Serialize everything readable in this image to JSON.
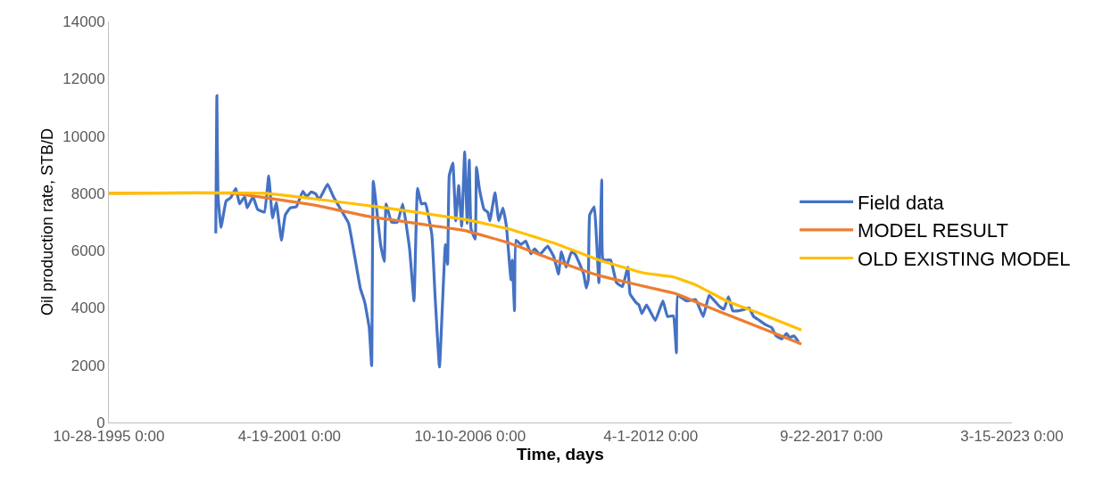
{
  "chart_data": {
    "type": "line",
    "xlabel": "Time, days",
    "ylabel": "Oil production rate, STB/D",
    "xlim": [
      "1995-10-28",
      "2023-03-15"
    ],
    "xticks": [
      {
        "value": "1995-10-28",
        "label": "10-28-1995 0:00"
      },
      {
        "value": "2001-04-19",
        "label": "4-19-2001 0:00"
      },
      {
        "value": "2006-10-10",
        "label": "10-10-2006 0:00"
      },
      {
        "value": "2012-04-01",
        "label": "4-1-2012 0:00"
      },
      {
        "value": "2017-09-22",
        "label": "9-22-2017 0:00"
      },
      {
        "value": "2023-03-15",
        "label": "3-15-2023 0:00"
      }
    ],
    "ylim": [
      0,
      14000
    ],
    "yticks": [
      0,
      2000,
      4000,
      6000,
      8000,
      10000,
      12000,
      14000
    ],
    "grid": false,
    "legend": "right",
    "marker": "none",
    "line_style": "solid",
    "series": [
      {
        "name": "Field data",
        "color": "#4472c4",
        "x": [
          "1999-01-24",
          "1999-02-05",
          "1999-02-17",
          "1999-03-23",
          "1999-05-18",
          "1999-07-07",
          "1999-09-03",
          "1999-10-14",
          "1999-12-10",
          "2000-01-07",
          "2000-03-11",
          "2000-05-01",
          "2000-07-15",
          "2000-09-01",
          "2000-10-13",
          "2000-11-24",
          "2001-01-20",
          "2001-03-03",
          "2001-04-27",
          "2001-07-04",
          "2001-09-14",
          "2001-10-25",
          "2001-12-15",
          "2002-02-04",
          "2002-03-13",
          "2002-06-15",
          "2002-08-19",
          "2002-11-26",
          "2003-02-03",
          "2003-06-12",
          "2003-08-01",
          "2003-09-19",
          "2003-10-16",
          "2003-11-03",
          "2003-12-11",
          "2004-01-23",
          "2004-03-03",
          "2004-03-24",
          "2004-05-23",
          "2004-07-28",
          "2004-09-24",
          "2004-12-09",
          "2005-01-27",
          "2005-03-07",
          "2005-04-19",
          "2005-06-02",
          "2005-08-13",
          "2005-09-16",
          "2005-11-05",
          "2006-01-09",
          "2006-02-03",
          "2006-02-21",
          "2006-04-02",
          "2006-05-04",
          "2006-06-06",
          "2006-07-09",
          "2006-08-11",
          "2006-09-08",
          "2006-10-01",
          "2006-10-21",
          "2006-12-05",
          "2006-12-20",
          "2007-01-23",
          "2007-03-13",
          "2007-04-24",
          "2007-05-17",
          "2007-07-13",
          "2007-08-24",
          "2007-10-08",
          "2007-11-16",
          "2008-01-06",
          "2008-01-20",
          "2008-02-14",
          "2008-03-01",
          "2008-04-27",
          "2008-06-17",
          "2008-08-13",
          "2008-09-24",
          "2008-11-20",
          "2009-02-15",
          "2009-04-26",
          "2009-06-15",
          "2009-07-17",
          "2009-09-07",
          "2009-11-06",
          "2009-12-20",
          "2010-03-21",
          "2010-04-18",
          "2010-05-11",
          "2010-05-26",
          "2010-07-16",
          "2010-09-05",
          "2010-10-07",
          "2010-10-23",
          "2011-01-14",
          "2011-03-19",
          "2011-05-24",
          "2011-07-23",
          "2011-08-16",
          "2011-10-21",
          "2011-11-23",
          "2011-12-25",
          "2012-02-15",
          "2012-05-22",
          "2012-08-14",
          "2012-10-04",
          "2012-12-08",
          "2013-01-11",
          "2013-01-25",
          "2013-05-04",
          "2013-08-11",
          "2013-11-04",
          "2014-01-08",
          "2014-05-03",
          "2014-06-20",
          "2014-08-10",
          "2014-09-27",
          "2014-12-04",
          "2015-02-09",
          "2015-03-26",
          "2015-05-16",
          "2015-07-21",
          "2015-09-26",
          "2015-12-02",
          "2016-01-19",
          "2016-03-24",
          "2016-05-14",
          "2016-06-16",
          "2016-08-06",
          "2016-09-23"
        ],
        "values": [
          6600,
          11410,
          7930,
          6810,
          7730,
          7840,
          8170,
          7630,
          7880,
          7490,
          7880,
          7440,
          7340,
          8610,
          7140,
          7680,
          6360,
          7240,
          7490,
          7530,
          8070,
          7880,
          8050,
          7980,
          7780,
          8320,
          7880,
          7340,
          6950,
          4690,
          4190,
          3310,
          1980,
          8420,
          7440,
          6210,
          5620,
          7630,
          6990,
          6990,
          7630,
          6060,
          4240,
          8170,
          7630,
          7650,
          6550,
          4490,
          1940,
          6210,
          5520,
          8610,
          9060,
          7040,
          8270,
          6850,
          9450,
          6950,
          9160,
          6750,
          6400,
          8910,
          8120,
          7440,
          7340,
          7040,
          8020,
          7040,
          7490,
          6850,
          4980,
          5670,
          3900,
          6360,
          6210,
          6340,
          5890,
          6060,
          5860,
          6160,
          5770,
          5180,
          5960,
          5420,
          5960,
          5860,
          5180,
          4690,
          4980,
          7240,
          7530,
          4880,
          8470,
          5670,
          5670,
          4880,
          4740,
          5420,
          4490,
          4190,
          4100,
          3800,
          4100,
          3560,
          4240,
          3700,
          3720,
          2430,
          4440,
          4240,
          4290,
          3700,
          4440,
          4050,
          3950,
          4390,
          3900,
          3900,
          3950,
          4000,
          3700,
          3560,
          3410,
          3310,
          3020,
          2920,
          3110,
          2970,
          3020,
          2820
        ]
      },
      {
        "name": "MODEL RESULT",
        "color": "#ed7d31",
        "x": [
          "1995-10-28",
          "1999-07-23",
          "2002-02-02",
          "2003-09-16",
          "2006-08-11",
          "2007-12-18",
          "2009-04-26",
          "2010-09-05",
          "2011-05-24",
          "2012-06-25",
          "2013-01-11",
          "2013-11-04",
          "2015-01-07",
          "2016-01-05",
          "2016-10-26"
        ],
        "values": [
          8000,
          8000,
          7580,
          7190,
          6700,
          6260,
          5670,
          5130,
          4930,
          4640,
          4490,
          4100,
          3560,
          3110,
          2740
        ]
      },
      {
        "name": "OLD EXISTING MODEL",
        "color": "#ffc000",
        "x": [
          "1995-10-28",
          "2000-07-21",
          "2003-11-24",
          "2006-08-11",
          "2007-12-18",
          "2009-04-26",
          "2010-09-05",
          "2012-01-13",
          "2012-12-08",
          "2013-08-27",
          "2014-07-22",
          "2015-06-18",
          "2016-10-26"
        ],
        "values": [
          8000,
          8000,
          7540,
          7090,
          6750,
          6260,
          5670,
          5220,
          5080,
          4780,
          4240,
          3850,
          3230
        ]
      }
    ]
  }
}
